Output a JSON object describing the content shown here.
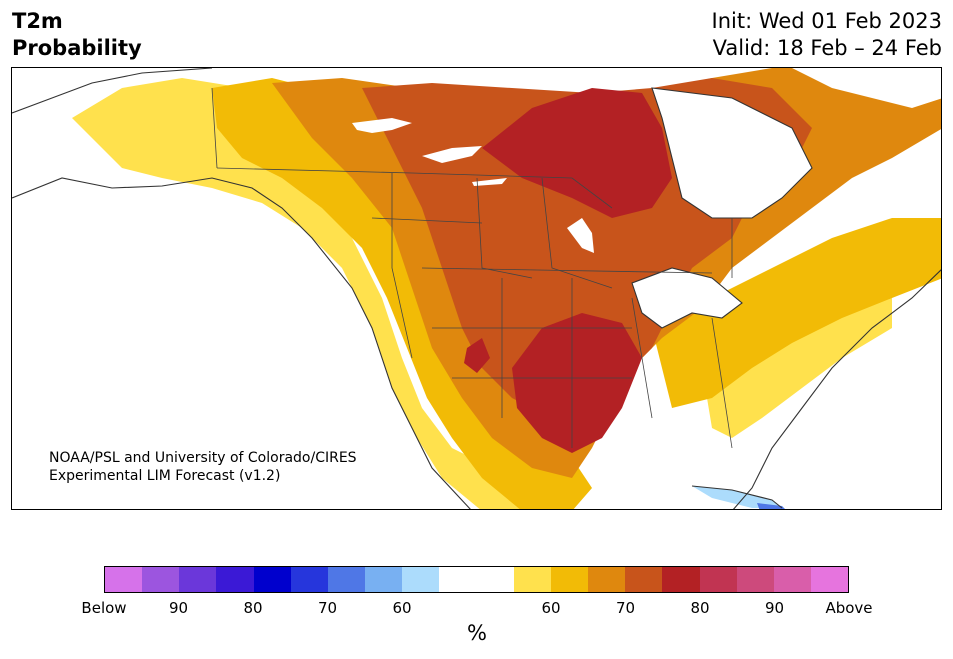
{
  "title": {
    "line1": "T2m",
    "line2": "Probability"
  },
  "dates": {
    "init": "Init: Wed 01 Feb 2023",
    "valid": "Valid: 18 Feb – 24 Feb"
  },
  "credit": {
    "line1": "NOAA/PSL and University of Colorado/CIRES",
    "line2": "Experimental LIM Forecast (v1.2)"
  },
  "colorbar": {
    "unit": "%",
    "colors": [
      "#d672ea",
      "#9c55df",
      "#6b37da",
      "#3b19d6",
      "#0000cd",
      "#2636dc",
      "#4f77e6",
      "#78b0f2",
      "#acdcfc",
      "#ffffff",
      "#ffffff",
      "#ffe14d",
      "#f2bb06",
      "#df880e",
      "#c8541b",
      "#b32124",
      "#c13452",
      "#cd4a7c",
      "#d95eaa",
      "#e674de"
    ],
    "ticks": [
      "Below",
      "90",
      "80",
      "70",
      "60",
      "60",
      "70",
      "80",
      "90",
      "Above"
    ]
  },
  "map": {
    "colors": {
      "p55": "#ffe14d",
      "p60": "#f2bb06",
      "p65": "#df880e",
      "p70": "#c8541b",
      "p75": "#b32124",
      "b55": "#acdcfc",
      "b60": "#78b0f2",
      "b65": "#4f77e6"
    }
  }
}
